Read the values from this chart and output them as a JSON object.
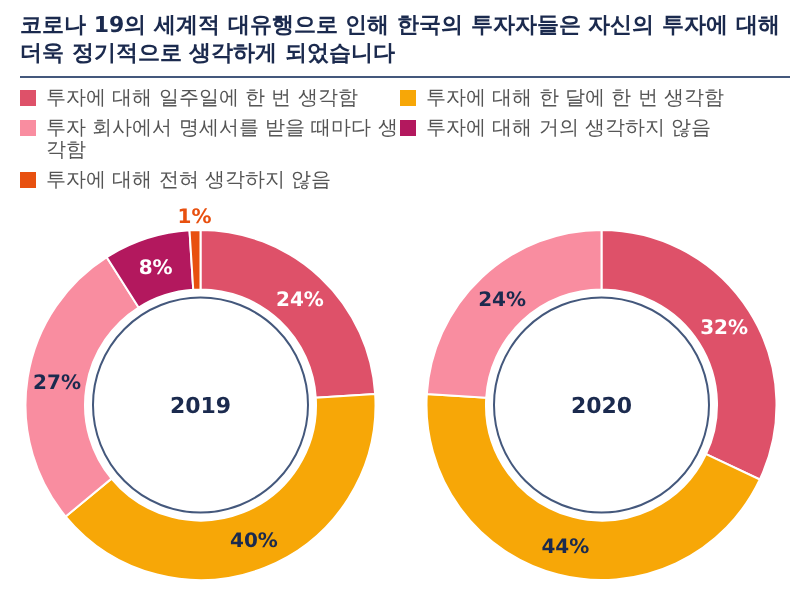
{
  "chart_data": [
    {
      "type": "donut",
      "title": "코로나 19의 세계적 대유행으로 인해 한국의 투자자들은 자신의 투자에 대해 더욱 정기적으로 생각하게 되었습니다",
      "categories": [
        "투자에 대해 일주일에 한 번 생각함",
        "투자에 대해 한 달에 한 번 생각함",
        "투자 회사에서 명세서를 받을 때마다 생각함",
        "투자에 대해 거의 생각하지 않음",
        "투자에 대해 전혀 생각하지 않음"
      ],
      "values": [
        24,
        40,
        27,
        8,
        1
      ],
      "colors": [
        "#de5169",
        "#f7a707",
        "#f98da0",
        "#b3185e",
        "#e8500f"
      ],
      "value_labels": [
        "24%",
        "40%",
        "27%",
        "8%",
        "1%"
      ],
      "annotations": [
        "2019"
      ],
      "legend": "top"
    },
    {
      "type": "donut",
      "categories": [
        null,
        null,
        null
      ],
      "values": [
        32,
        44,
        24
      ],
      "colors": [
        "#de5169",
        "#f7a707",
        "#f98da0"
      ],
      "value_labels": [
        "32%",
        "44%",
        "24%"
      ],
      "annotations": [
        "2020"
      ]
    }
  ]
}
